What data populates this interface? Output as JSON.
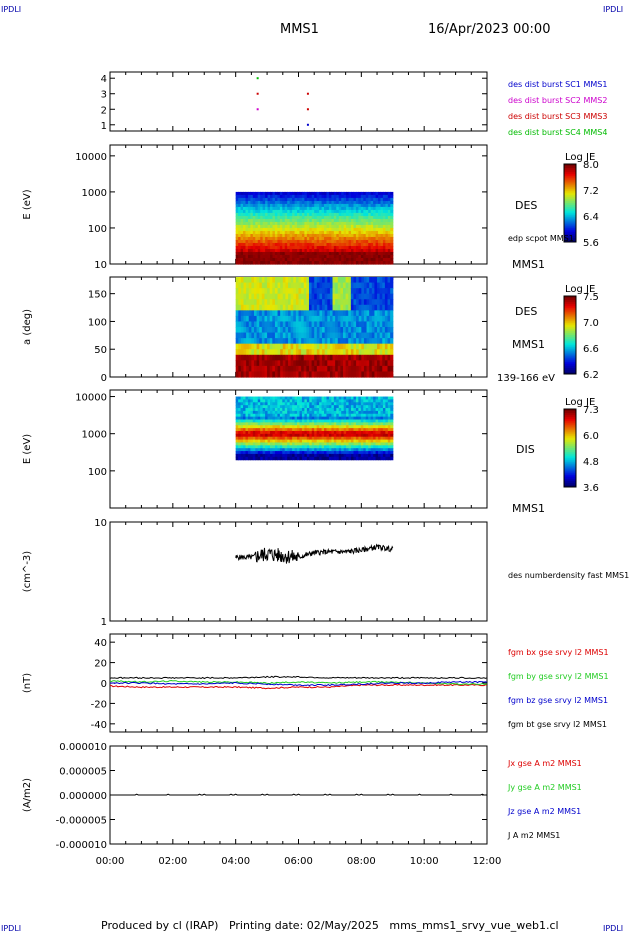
{
  "corner_label": "IPDLI",
  "header": {
    "spacecraft": "MMS1",
    "datetime": "16/Apr/2023 00:00"
  },
  "footer": "Produced by cl (IRAP)   Printing date: 02/May/2025   mms_mms1_srvy_vue_web1.cl",
  "colors": {
    "blue": "#0000cc",
    "magenta": "#cc00cc",
    "red": "#cc0000",
    "green": "#00bb00",
    "black": "#000000",
    "fgm_x": "#dd0000",
    "fgm_y": "#22cc22",
    "fgm_z": "#0000cc"
  },
  "chart_data": [
    {
      "type": "scatter",
      "panel": "burst",
      "x_range_hours": [
        0,
        12
      ],
      "yticks": [
        "1",
        "2",
        "3",
        "4"
      ],
      "ylim": [
        0.6,
        4.4
      ],
      "points": [
        {
          "t": 4.7,
          "y": 4,
          "series": 3
        },
        {
          "t": 4.7,
          "y": 3,
          "series": 2
        },
        {
          "t": 4.7,
          "y": 2,
          "series": 1
        },
        {
          "t": 6.3,
          "y": 3,
          "series": 2
        },
        {
          "t": 6.3,
          "y": 2,
          "series": 2
        },
        {
          "t": 6.3,
          "y": 1,
          "series": 0
        }
      ],
      "legend": [
        {
          "text": "des dist burst SC1 MMS1",
          "color": "#0000cc"
        },
        {
          "text": "des dist burst SC2 MMS2",
          "color": "#cc00cc"
        },
        {
          "text": "des dist burst SC3 MMS3",
          "color": "#cc0000"
        },
        {
          "text": "des dist burst SC4 MMS4",
          "color": "#00bb00"
        }
      ]
    },
    {
      "type": "heatmap",
      "panel": "des-energy",
      "ylabel": "E (eV)",
      "log_y": true,
      "ylim": [
        10,
        20000
      ],
      "yticks": [
        "10",
        "100",
        "1000",
        "10000"
      ],
      "data_time_hours": [
        4.0,
        9.0
      ],
      "data_ylim": [
        10,
        1000
      ],
      "colorbar": {
        "title": "Log JE",
        "ticks": [
          "8.0",
          "7.2",
          "6.4",
          "5.6"
        ],
        "range": [
          5.6,
          8.0
        ]
      },
      "right_labels": [
        "DES",
        "edp scpot MMS1",
        "MMS1"
      ]
    },
    {
      "type": "heatmap",
      "panel": "des-pitch",
      "ylabel": "a (deg)",
      "ylim": [
        0,
        180
      ],
      "yticks": [
        "0",
        "50",
        "100",
        "150"
      ],
      "data_time_hours": [
        4.0,
        9.0
      ],
      "colorbar": {
        "title": "Log JE",
        "ticks": [
          "7.5",
          "7.0",
          "6.6",
          "6.2"
        ],
        "range": [
          6.2,
          7.5
        ]
      },
      "right_labels": [
        "DES",
        "MMS1",
        "139-166 eV"
      ]
    },
    {
      "type": "heatmap",
      "panel": "dis-energy",
      "ylabel": "E (eV)",
      "log_y": true,
      "ylim": [
        10,
        15000
      ],
      "yticks": [
        "100",
        "1000",
        "10000"
      ],
      "data_time_hours": [
        4.0,
        9.0
      ],
      "data_ylim": [
        200,
        10000
      ],
      "colorbar": {
        "title": "Log JE",
        "ticks": [
          "7.3",
          "6.0",
          "4.8",
          "3.6"
        ],
        "range": [
          3.6,
          7.3
        ]
      },
      "right_labels": [
        "DIS",
        "MMS1"
      ]
    },
    {
      "type": "line",
      "panel": "density",
      "ylabel": "(cm^-3)",
      "log_y": true,
      "ylim": [
        1,
        10
      ],
      "yticks": [
        "1",
        "10"
      ],
      "series": [
        {
          "name": "des numberdensity fast MMS1",
          "t": [
            4.0,
            4.5,
            5.0,
            5.5,
            6.0,
            6.5,
            7.0,
            7.5,
            8.0,
            8.5,
            9.0
          ],
          "values": [
            4.4,
            4.4,
            4.8,
            4.6,
            4.4,
            4.9,
            5.0,
            5.0,
            5.2,
            5.6,
            5.3
          ]
        }
      ]
    },
    {
      "type": "line",
      "panel": "fgm",
      "ylabel": "(nT)",
      "ylim": [
        -48,
        48
      ],
      "yticks": [
        "-40",
        "-20",
        "0",
        "20",
        "40"
      ],
      "series": [
        {
          "name": "fgm bx gse srvy l2 MMS1",
          "color": "#dd0000",
          "t": [
            0,
            1,
            2,
            3,
            4,
            5,
            6,
            7,
            8,
            9,
            10,
            11,
            12
          ],
          "values": [
            -3,
            -4,
            -4,
            -4,
            -4,
            -5,
            -4,
            -4,
            -2,
            -2,
            -2,
            -2,
            -2
          ]
        },
        {
          "name": "fgm by gse srvy l2 MMS1",
          "color": "#22cc22",
          "t": [
            0,
            1,
            2,
            3,
            4,
            5,
            6,
            7,
            8,
            9,
            10,
            11,
            12
          ],
          "values": [
            2,
            1,
            2,
            1,
            1,
            0,
            1,
            0,
            1,
            1,
            0,
            -1,
            -1
          ]
        },
        {
          "name": "fgm bz gse srvy l2 MMS1",
          "color": "#0000cc",
          "t": [
            0,
            1,
            2,
            3,
            4,
            5,
            6,
            7,
            8,
            9,
            10,
            11,
            12
          ],
          "values": [
            0,
            0,
            -1,
            -1,
            0,
            -1,
            -2,
            -2,
            -1,
            0,
            0,
            1,
            1
          ]
        },
        {
          "name": "fgm bt gse srvy l2 MMS1",
          "color": "#000000",
          "t": [
            0,
            1,
            2,
            3,
            4,
            5,
            6,
            7,
            8,
            9,
            10,
            11,
            12
          ],
          "values": [
            5,
            5,
            5,
            5,
            5,
            6,
            6,
            5,
            5,
            5,
            5,
            5,
            5
          ]
        }
      ]
    },
    {
      "type": "line",
      "panel": "current",
      "ylabel": "(A/m2)",
      "ylim": [
        -1e-05,
        1e-05
      ],
      "yticks": [
        "0.000010",
        "0.000005",
        "0.000000",
        "-0.000005",
        "-0.000010"
      ],
      "xlabel_ticks": [
        "00:00",
        "02:00",
        "04:00",
        "06:00",
        "08:00",
        "10:00",
        "12:00"
      ],
      "series": [
        {
          "name": "Jx gse A m2 MMS1",
          "color": "#dd0000",
          "t": [
            0,
            12
          ],
          "values": [
            0,
            0
          ]
        },
        {
          "name": "Jy gse A m2 MMS1",
          "color": "#22cc22",
          "t": [
            0,
            12
          ],
          "values": [
            0,
            0
          ]
        },
        {
          "name": "Jz gse A m2 MMS1",
          "color": "#0000cc",
          "t": [
            0,
            12
          ],
          "values": [
            0,
            0
          ]
        },
        {
          "name": "J A m2 MMS1",
          "color": "#000000",
          "t": [
            0,
            12
          ],
          "values": [
            0,
            0
          ]
        }
      ]
    }
  ]
}
